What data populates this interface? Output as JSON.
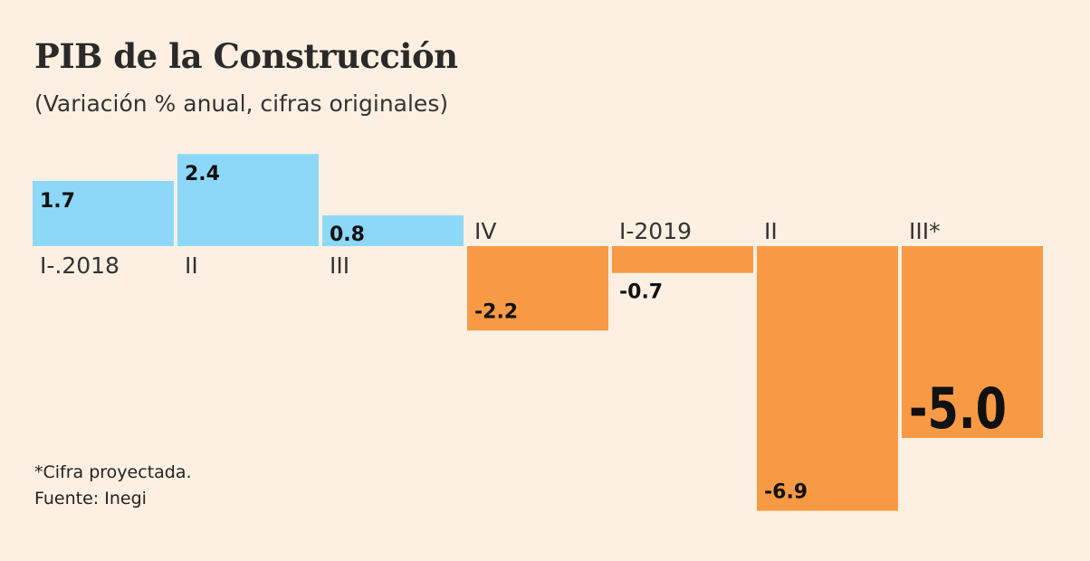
{
  "chart_data": {
    "type": "bar",
    "title": "PIB de la Construcción",
    "subtitle": "(Variación % anual, cifras originales)",
    "categories": [
      "I-.2018",
      "II",
      "III",
      "IV",
      "I-2019",
      "II",
      "III*"
    ],
    "values": [
      1.7,
      2.4,
      0.8,
      -2.2,
      -0.7,
      -6.9,
      -5.0
    ],
    "value_labels": [
      "1.7",
      "2.4",
      "0.8",
      "-2.2",
      "-0.7",
      "-6.9",
      "-5.0"
    ],
    "colors": {
      "positive": "#8dd8f8",
      "negative": "#f89a45",
      "background": "#fdf0e2"
    },
    "grid": false,
    "legend": "none"
  },
  "notes": {
    "footnote": "*Cifra proyectada.",
    "source": "Fuente: Inegi"
  }
}
